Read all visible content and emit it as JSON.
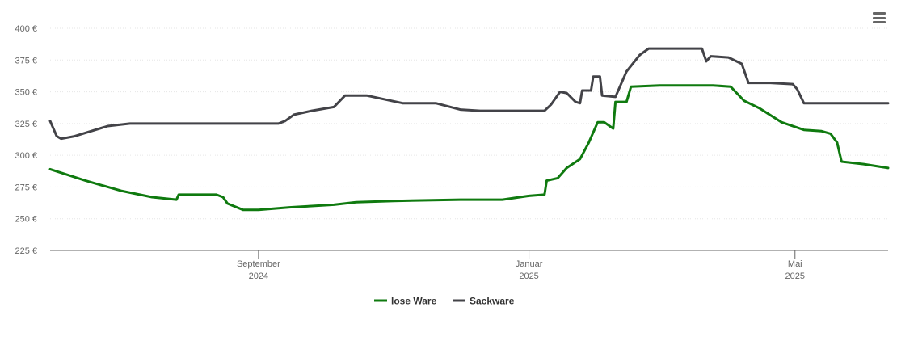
{
  "toolbar": {
    "menu_icon": "hamburger-menu-icon"
  },
  "chart_data": {
    "type": "line",
    "title": "",
    "xlabel": "",
    "ylabel": "",
    "ylim": [
      225,
      400
    ],
    "yticks": [
      225,
      250,
      275,
      300,
      325,
      350,
      375,
      400
    ],
    "y_tick_labels": [
      "225 €",
      "250 €",
      "275 €",
      "300 €",
      "325 €",
      "350 €",
      "375 €",
      "400 €"
    ],
    "xlim": [
      "2024-05-30",
      "2025-06-12"
    ],
    "xticks": [
      {
        "date": "2024-09-01",
        "label": "September",
        "sublabel": "2024"
      },
      {
        "date": "2025-01-01",
        "label": "Januar",
        "sublabel": "2025"
      },
      {
        "date": "2025-05-01",
        "label": "Mai",
        "sublabel": "2025"
      }
    ],
    "grid": true,
    "legend": "bottom-center",
    "series": [
      {
        "name": "lose Ware",
        "color": "#0f7a0f",
        "points": [
          [
            "2024-05-30",
            289
          ],
          [
            "2024-06-15",
            280
          ],
          [
            "2024-07-01",
            272
          ],
          [
            "2024-07-15",
            267
          ],
          [
            "2024-07-26",
            265
          ],
          [
            "2024-07-27",
            269
          ],
          [
            "2024-08-04",
            269
          ],
          [
            "2024-08-13",
            269
          ],
          [
            "2024-08-16",
            267
          ],
          [
            "2024-08-18",
            262
          ],
          [
            "2024-08-25",
            257
          ],
          [
            "2024-09-01",
            257
          ],
          [
            "2024-09-15",
            259
          ],
          [
            "2024-09-25",
            260
          ],
          [
            "2024-10-05",
            261
          ],
          [
            "2024-10-15",
            263
          ],
          [
            "2024-11-01",
            264
          ],
          [
            "2024-12-01",
            265
          ],
          [
            "2024-12-20",
            265
          ],
          [
            "2025-01-01",
            268
          ],
          [
            "2025-01-08",
            269
          ],
          [
            "2025-01-09",
            280
          ],
          [
            "2025-01-14",
            282
          ],
          [
            "2025-01-18",
            290
          ],
          [
            "2025-01-24",
            297
          ],
          [
            "2025-01-28",
            310
          ],
          [
            "2025-02-01",
            326
          ],
          [
            "2025-02-04",
            326
          ],
          [
            "2025-02-08",
            321
          ],
          [
            "2025-02-09",
            342
          ],
          [
            "2025-02-14",
            342
          ],
          [
            "2025-02-16",
            354
          ],
          [
            "2025-03-01",
            355
          ],
          [
            "2025-03-25",
            355
          ],
          [
            "2025-04-02",
            354
          ],
          [
            "2025-04-08",
            343
          ],
          [
            "2025-04-15",
            337
          ],
          [
            "2025-04-25",
            326
          ],
          [
            "2025-05-05",
            320
          ],
          [
            "2025-05-13",
            319
          ],
          [
            "2025-05-17",
            317
          ],
          [
            "2025-05-20",
            310
          ],
          [
            "2025-05-22",
            295
          ],
          [
            "2025-06-01",
            293
          ],
          [
            "2025-06-12",
            290
          ]
        ]
      },
      {
        "name": "Sackware",
        "color": "#434348",
        "points": [
          [
            "2024-05-30",
            327
          ],
          [
            "2024-06-02",
            315
          ],
          [
            "2024-06-04",
            313
          ],
          [
            "2024-06-10",
            315
          ],
          [
            "2024-06-25",
            323
          ],
          [
            "2024-07-05",
            325
          ],
          [
            "2024-08-01",
            325
          ],
          [
            "2024-09-01",
            325
          ],
          [
            "2024-09-10",
            325
          ],
          [
            "2024-09-13",
            327
          ],
          [
            "2024-09-17",
            332
          ],
          [
            "2024-09-25",
            335
          ],
          [
            "2024-10-05",
            338
          ],
          [
            "2024-10-10",
            347
          ],
          [
            "2024-10-20",
            347
          ],
          [
            "2024-11-05",
            341
          ],
          [
            "2024-11-20",
            341
          ],
          [
            "2024-12-01",
            336
          ],
          [
            "2024-12-10",
            335
          ],
          [
            "2024-12-25",
            335
          ],
          [
            "2025-01-08",
            335
          ],
          [
            "2025-01-11",
            340
          ],
          [
            "2025-01-15",
            350
          ],
          [
            "2025-01-18",
            349
          ],
          [
            "2025-01-22",
            342
          ],
          [
            "2025-01-24",
            341
          ],
          [
            "2025-01-25",
            351
          ],
          [
            "2025-01-29",
            351
          ],
          [
            "2025-01-30",
            362
          ],
          [
            "2025-02-02",
            362
          ],
          [
            "2025-02-03",
            347
          ],
          [
            "2025-02-09",
            346
          ],
          [
            "2025-02-14",
            366
          ],
          [
            "2025-02-20",
            379
          ],
          [
            "2025-02-24",
            384
          ],
          [
            "2025-03-01",
            384
          ],
          [
            "2025-03-20",
            384
          ],
          [
            "2025-03-22",
            374
          ],
          [
            "2025-03-24",
            378
          ],
          [
            "2025-04-01",
            377
          ],
          [
            "2025-04-07",
            372
          ],
          [
            "2025-04-10",
            357
          ],
          [
            "2025-04-20",
            357
          ],
          [
            "2025-04-30",
            356
          ],
          [
            "2025-05-02",
            352
          ],
          [
            "2025-05-05",
            341
          ],
          [
            "2025-05-15",
            341
          ],
          [
            "2025-06-12",
            341
          ]
        ]
      }
    ]
  }
}
